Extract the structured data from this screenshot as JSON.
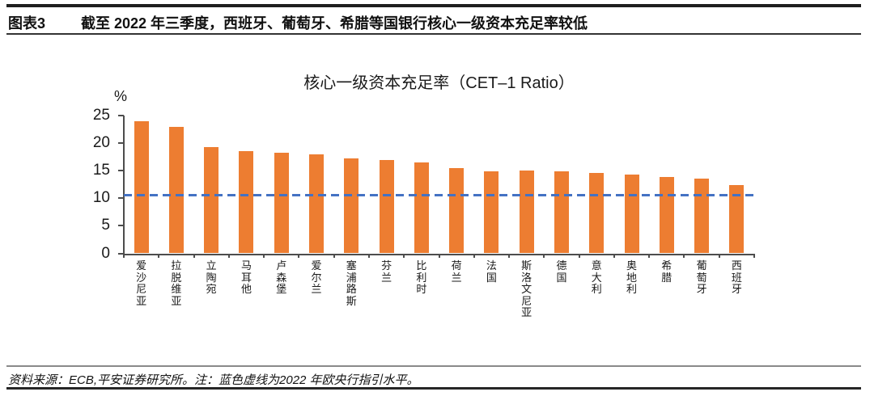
{
  "header": {
    "figure_label": "图表3",
    "caption": "截至 2022 年三季度，西班牙、葡萄牙、希腊等国银行核心一级资本充足率较低"
  },
  "chart_data": {
    "type": "bar",
    "title": "核心一级资本充足率（CET–1 Ratio）",
    "unit_label": "%",
    "categories": [
      "爱沙尼亚",
      "拉脱维亚",
      "立陶宛",
      "马耳他",
      "卢森堡",
      "爱尔兰",
      "塞浦路斯",
      "芬兰",
      "比利时",
      "荷兰",
      "法国",
      "斯洛文尼亚",
      "德国",
      "意大利",
      "奥地利",
      "希腊",
      "葡萄牙",
      "西班牙"
    ],
    "values": [
      24.0,
      23.0,
      19.3,
      18.5,
      18.3,
      18.0,
      17.3,
      16.9,
      16.5,
      15.4,
      14.9,
      15.0,
      14.9,
      14.6,
      14.3,
      13.8,
      13.5,
      12.4
    ],
    "ylim": [
      0,
      25
    ],
    "ytick_step": 5,
    "grid": false,
    "legend": "none",
    "bar_color": "#ED7D31",
    "guideline": {
      "value": 10.6,
      "color": "#4472C4",
      "style": "dashed"
    }
  },
  "footer": {
    "note": "资料来源：ECB,平安证券研究所。注：蓝色虚线为2022 年欧央行指引水平。"
  }
}
